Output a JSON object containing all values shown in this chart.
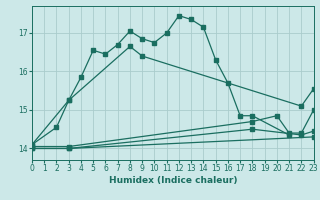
{
  "xlabel": "Humidex (Indice chaleur)",
  "xlim": [
    0,
    23
  ],
  "ylim": [
    13.7,
    17.7
  ],
  "xticks": [
    0,
    1,
    2,
    3,
    4,
    5,
    6,
    7,
    8,
    9,
    10,
    11,
    12,
    13,
    14,
    15,
    16,
    17,
    18,
    19,
    20,
    21,
    22,
    23
  ],
  "yticks": [
    14,
    15,
    16,
    17
  ],
  "background_color": "#cce8e8",
  "grid_color": "#aacccc",
  "line_color": "#1a6e60",
  "line1_x": [
    0,
    2,
    3,
    4,
    5,
    6,
    7,
    8,
    9,
    10,
    11,
    12,
    13,
    14,
    15,
    16,
    17,
    18,
    21
  ],
  "line1_y": [
    14.1,
    14.55,
    15.25,
    15.85,
    16.55,
    16.45,
    16.7,
    17.05,
    16.85,
    16.75,
    17.0,
    17.45,
    17.35,
    17.15,
    16.3,
    15.7,
    14.85,
    14.85,
    14.35
  ],
  "line2_x": [
    0,
    3,
    8,
    9,
    22,
    23
  ],
  "line2_y": [
    14.1,
    15.25,
    16.65,
    16.4,
    15.1,
    15.55
  ],
  "line3_x": [
    0,
    3,
    18,
    20,
    21,
    22,
    23
  ],
  "line3_y": [
    14.05,
    14.05,
    14.7,
    14.85,
    14.4,
    14.4,
    15.0
  ],
  "line4_x": [
    0,
    3,
    18,
    22,
    23
  ],
  "line4_y": [
    14.0,
    14.0,
    14.5,
    14.35,
    14.45
  ],
  "line5_x": [
    0,
    3,
    23
  ],
  "line5_y": [
    14.0,
    14.0,
    14.3
  ]
}
